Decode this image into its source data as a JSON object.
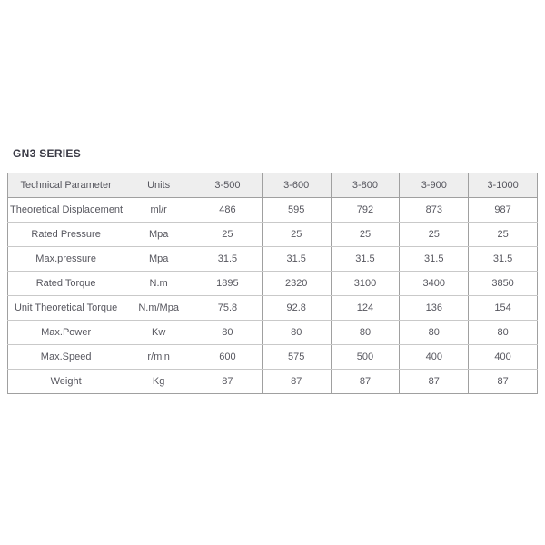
{
  "title": "GN3 SERIES",
  "colors": {
    "page_bg": "#ffffff",
    "header_bg": "#eeeeee",
    "border_dark": "#a0a0a0",
    "border_light": "#c9c9c9",
    "text": "#56565e",
    "title_text": "#3a3a45"
  },
  "table": {
    "headers": [
      "Technical Parameter",
      "Units",
      "3-500",
      "3-600",
      "3-800",
      "3-900",
      "3-1000"
    ],
    "rows": [
      {
        "parameter": "Theoretical Displacement",
        "unit": "ml/r",
        "values": [
          "486",
          "595",
          "792",
          "873",
          "987"
        ]
      },
      {
        "parameter": "Rated Pressure",
        "unit": "Mpa",
        "values": [
          "25",
          "25",
          "25",
          "25",
          "25"
        ]
      },
      {
        "parameter": "Max.pressure",
        "unit": "Mpa",
        "values": [
          "31.5",
          "31.5",
          "31.5",
          "31.5",
          "31.5"
        ]
      },
      {
        "parameter": "Rated Torque",
        "unit": "N.m",
        "values": [
          "1895",
          "2320",
          "3100",
          "3400",
          "3850"
        ]
      },
      {
        "parameter": "Unit Theoretical Torque",
        "unit": "N.m/Mpa",
        "values": [
          "75.8",
          "92.8",
          "124",
          "136",
          "154"
        ]
      },
      {
        "parameter": "Max.Power",
        "unit": "Kw",
        "values": [
          "80",
          "80",
          "80",
          "80",
          "80"
        ]
      },
      {
        "parameter": "Max.Speed",
        "unit": "r/min",
        "values": [
          "600",
          "575",
          "500",
          "400",
          "400"
        ]
      },
      {
        "parameter": "Weight",
        "unit": "Kg",
        "values": [
          "87",
          "87",
          "87",
          "87",
          "87"
        ]
      }
    ]
  }
}
